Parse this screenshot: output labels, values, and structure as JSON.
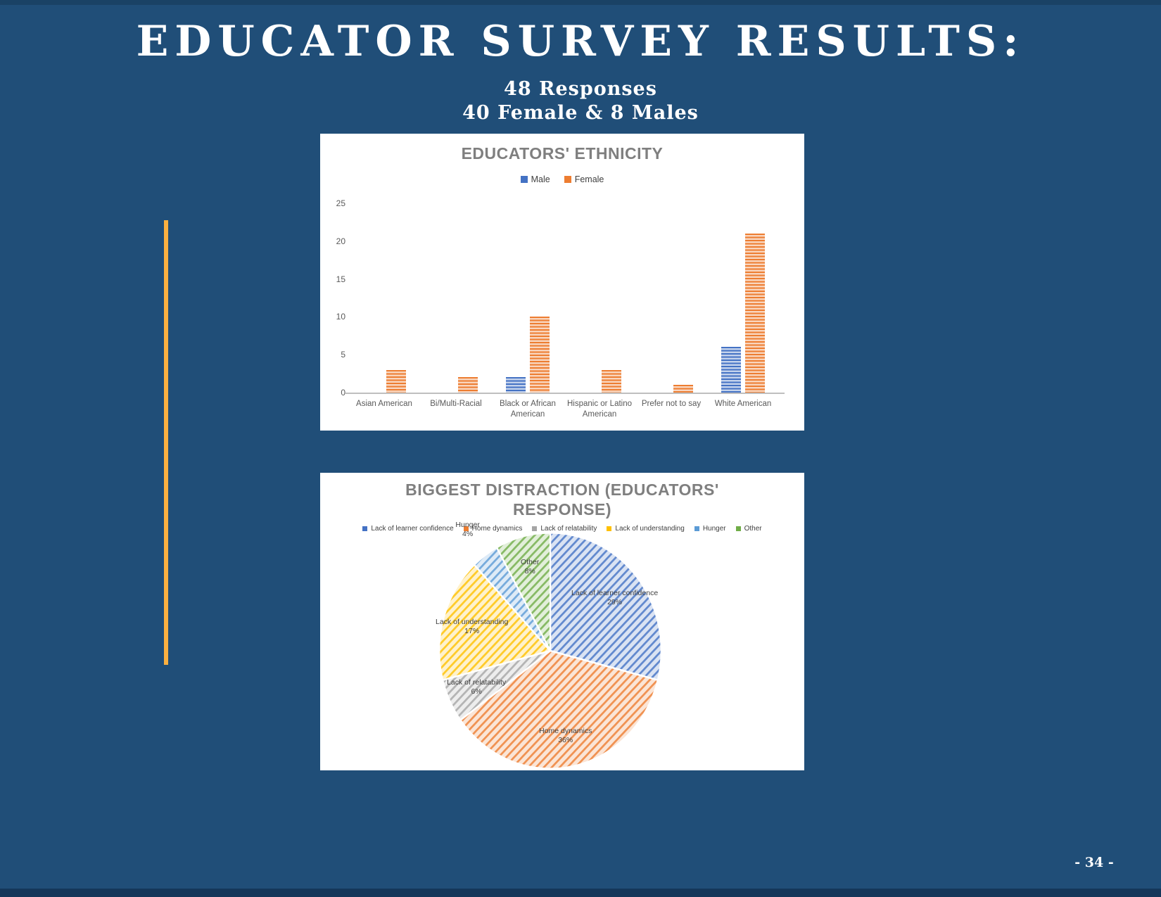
{
  "page": {
    "title": "EDUCATOR SURVEY RESULTS:",
    "subtitle_line1": "48 Responses",
    "subtitle_line2": "40 Female & 8 Males",
    "page_number": "- 34 -",
    "background_color": "#204E78",
    "accent_line_color": "#FBB040"
  },
  "chart_data": [
    {
      "type": "bar",
      "title": "EDUCATORS' ETHNICITY",
      "categories": [
        "Asian American",
        "Bi/Multi-Racial",
        "Black or African American",
        "Hispanic or Latino American",
        "Prefer not to say",
        "White American"
      ],
      "series": [
        {
          "name": "Male",
          "color": "#4472C4",
          "values": [
            0,
            0,
            2,
            0,
            0,
            6
          ]
        },
        {
          "name": "Female",
          "color": "#ED7D31",
          "values": [
            3,
            2,
            10,
            3,
            1,
            21
          ]
        }
      ],
      "ylabel": "",
      "xlabel": "",
      "ylim": [
        0,
        25
      ],
      "yticks": [
        0,
        5,
        10,
        15,
        20,
        25
      ],
      "grid": false,
      "legend_position": "top"
    },
    {
      "type": "pie",
      "title": "BIGGEST DISTRACTION (EDUCATORS' RESPONSE)",
      "legend_position": "top",
      "slices": [
        {
          "label": "Lack of learner confidence",
          "pct": 29,
          "color": "#4472C4"
        },
        {
          "label": "Home dynamics",
          "pct": 36,
          "color": "#ED7D31"
        },
        {
          "label": "Lack of relatability",
          "pct": 6,
          "color": "#A5A5A5"
        },
        {
          "label": "Lack of understanding",
          "pct": 17,
          "color": "#FFC000"
        },
        {
          "label": "Hunger",
          "pct": 4,
          "color": "#5B9BD5"
        },
        {
          "label": "Other",
          "pct": 8,
          "color": "#70AD47"
        }
      ]
    }
  ]
}
